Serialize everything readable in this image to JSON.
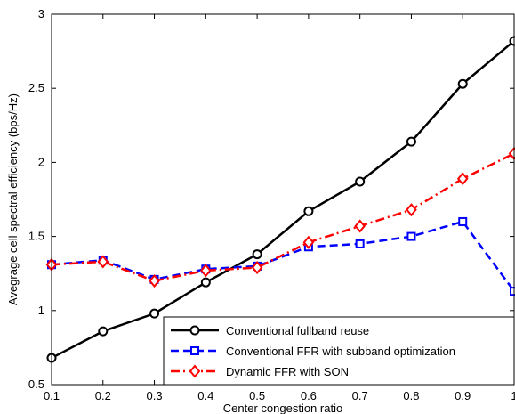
{
  "chart_data": {
    "type": "line",
    "title": "",
    "xlabel": "Center congestion ratio",
    "ylabel": "Avegrage cell spectral efficiency (bps/Hz)",
    "x": [
      0.1,
      0.2,
      0.3,
      0.4,
      0.5,
      0.6,
      0.7,
      0.8,
      0.9,
      1.0
    ],
    "xlim": [
      0.1,
      1.0
    ],
    "ylim": [
      0.5,
      3.0
    ],
    "xticks": [
      "0.1",
      "0.2",
      "0.3",
      "0.4",
      "0.5",
      "0.6",
      "0.7",
      "0.8",
      "0.9",
      "1"
    ],
    "yticks": [
      "0.5",
      "1",
      "1.5",
      "2",
      "2.5",
      "3"
    ],
    "grid": false,
    "legend_position": "bottom-right",
    "series": [
      {
        "name": "Conventional fullband reuse",
        "values": [
          0.68,
          0.86,
          0.98,
          1.19,
          1.38,
          1.67,
          1.87,
          2.14,
          2.53,
          2.82
        ],
        "color": "#000000",
        "line_style": "solid",
        "marker": "circle"
      },
      {
        "name": "Conventional FFR with subband optimization",
        "values": [
          1.31,
          1.34,
          1.21,
          1.28,
          1.3,
          1.43,
          1.45,
          1.5,
          1.6,
          1.13
        ],
        "color": "#0000ff",
        "line_style": "dashed",
        "marker": "square"
      },
      {
        "name": "Dynamic FFR with SON",
        "values": [
          1.31,
          1.33,
          1.2,
          1.27,
          1.29,
          1.46,
          1.57,
          1.68,
          1.89,
          2.06
        ],
        "color": "#ff0000",
        "line_style": "dashdot",
        "marker": "diamond"
      }
    ]
  }
}
